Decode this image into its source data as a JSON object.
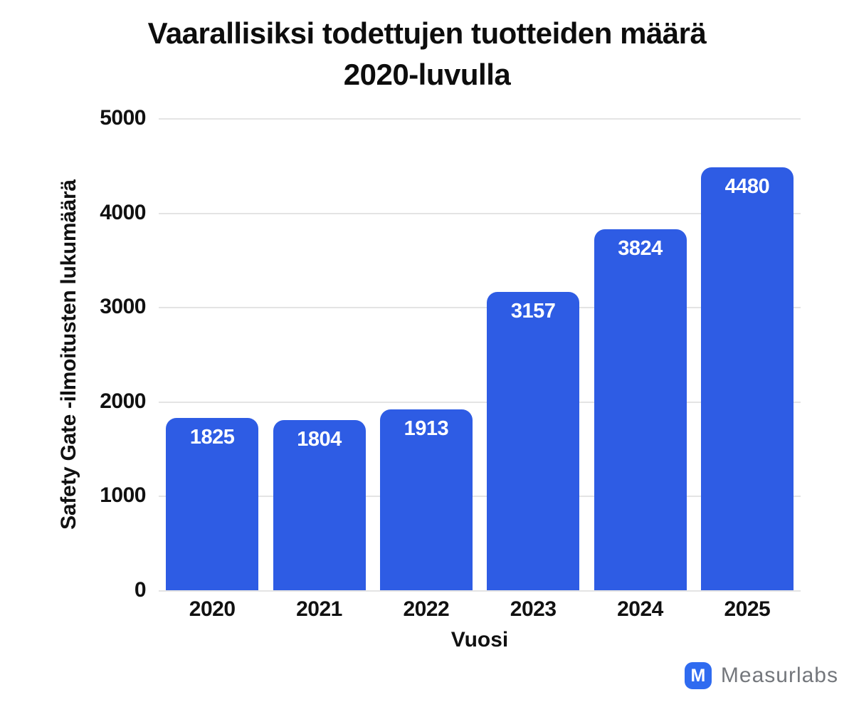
{
  "title_lines": [
    "Vaarallisiksi todettujen tuotteiden määrä",
    "2020-luvulla"
  ],
  "chart_data": {
    "type": "bar",
    "title": "Vaarallisiksi todettujen tuotteiden määrä 2020-luvulla",
    "categories": [
      "2020",
      "2021",
      "2022",
      "2023",
      "2024",
      "2025"
    ],
    "values": [
      1825,
      1804,
      1913,
      3157,
      3824,
      4480
    ],
    "xlabel": "Vuosi",
    "ylabel": "Safety Gate -ilmoitusten lukumäärä",
    "ylim": [
      0,
      5000
    ],
    "yticks": [
      0,
      1000,
      2000,
      3000,
      4000,
      5000
    ],
    "grid": true,
    "legend": "none",
    "bar_color": "#2e5ce4",
    "value_label_color": "#ffffff"
  },
  "branding": {
    "logo_icon": "M",
    "logo_text": "Measurlabs",
    "logo_color": "#2f6bf0",
    "text_color": "#74777c"
  }
}
